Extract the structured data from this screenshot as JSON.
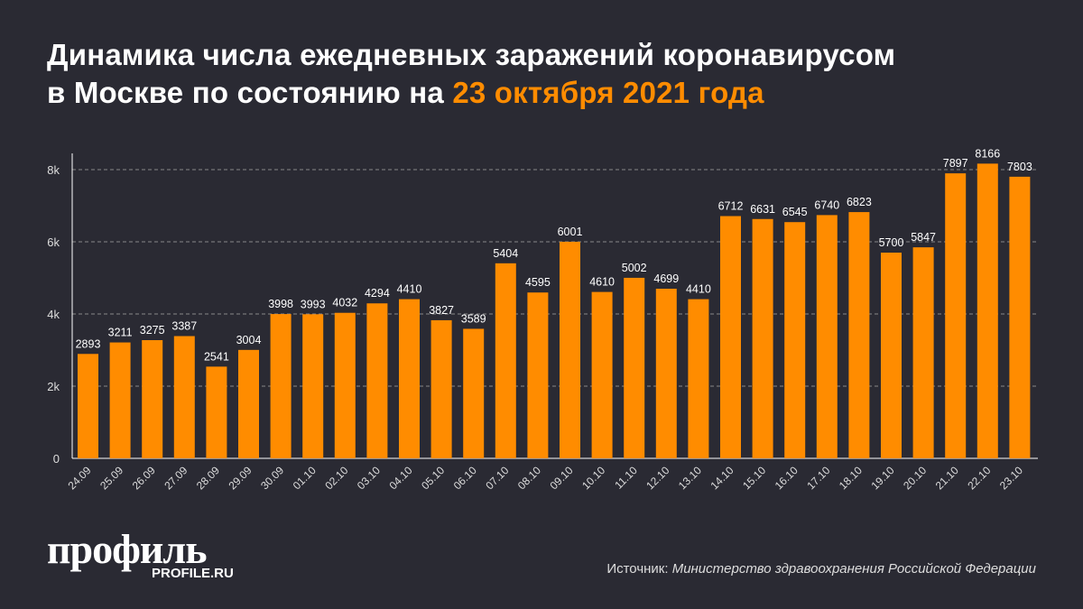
{
  "title": {
    "line1": "Динамика числа ежедневных заражений коронавирусом",
    "line2_prefix": "в Москве по состоянию на ",
    "line2_highlight": "23 октября 2021 года"
  },
  "colors": {
    "bar": "#ff8c00",
    "background": "#2a2a33",
    "highlight": "#ff8c00"
  },
  "chart_data": {
    "type": "bar",
    "title": "Динамика числа ежедневных заражений коронавирусом в Москве по состоянию на 23 октября 2021 года",
    "categories": [
      "24.09",
      "25.09",
      "26.09",
      "27.09",
      "28.09",
      "29.09",
      "30.09",
      "01.10",
      "02.10",
      "03.10",
      "04.10",
      "05.10",
      "06.10",
      "07.10",
      "08.10",
      "09.10",
      "10.10",
      "11.10",
      "12.10",
      "13.10",
      "14.10",
      "15.10",
      "16.10",
      "17.10",
      "18.10",
      "19.10",
      "20.10",
      "21.10",
      "22.10",
      "23.10"
    ],
    "values": [
      2893,
      3211,
      3275,
      3387,
      2541,
      3004,
      3998,
      3993,
      4032,
      4294,
      4410,
      3827,
      3589,
      5404,
      4595,
      6001,
      4610,
      5002,
      4699,
      4410,
      6712,
      6631,
      6545,
      6740,
      6823,
      5700,
      5847,
      7897,
      8166,
      7803
    ],
    "yticks": [
      {
        "value": 0,
        "label": "0"
      },
      {
        "value": 2000,
        "label": "2k"
      },
      {
        "value": 4000,
        "label": "4k"
      },
      {
        "value": 6000,
        "label": "6k"
      },
      {
        "value": 8000,
        "label": "8k"
      }
    ],
    "ylim": [
      0,
      8000
    ],
    "grid": "horizontal dashed",
    "xlabel": "",
    "ylabel": ""
  },
  "logo": {
    "name": "профиль",
    "site": "PROFILE.RU"
  },
  "source": {
    "label": "Источник: ",
    "value": "Министерство здравоохранения Российской Федерации"
  }
}
